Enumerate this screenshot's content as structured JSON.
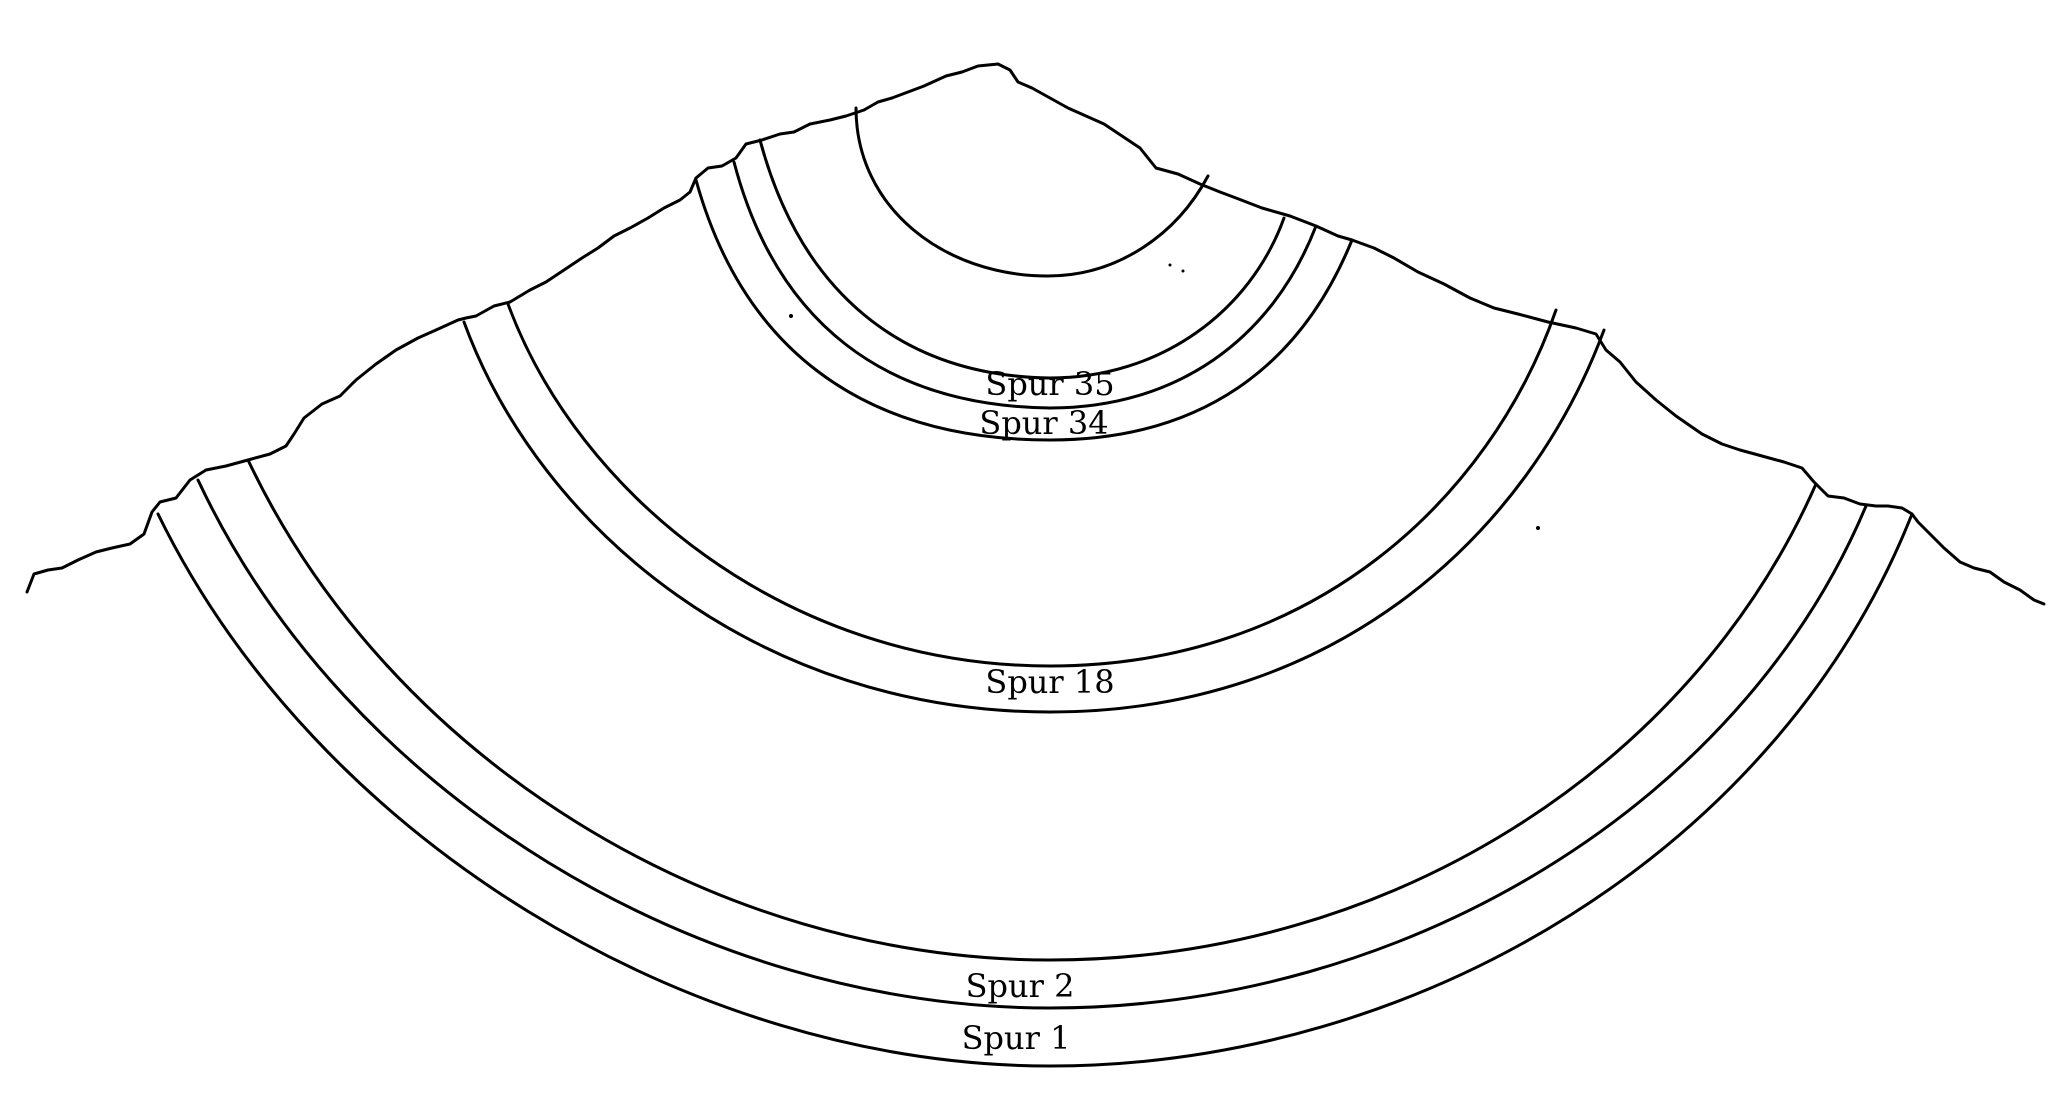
{
  "diagram": {
    "labels": {
      "spur_35": "Spur 35",
      "spur_34": "Spur 34",
      "spur_18": "Spur 18",
      "spur_2": "Spur 2",
      "spur_1": "Spur 1"
    },
    "colors": {
      "line": "#000000",
      "background": "#ffffff"
    }
  }
}
